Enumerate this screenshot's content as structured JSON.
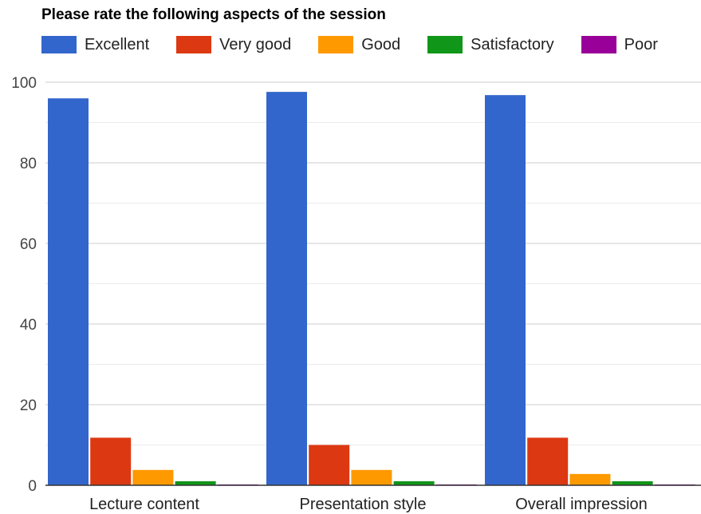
{
  "chart_data": {
    "type": "bar",
    "title": "Please rate the following aspects of the session",
    "categories": [
      "Lecture content",
      "Presentation style",
      "Overall impression"
    ],
    "series": [
      {
        "name": "Excellent",
        "color": "#3366cc",
        "values": [
          96,
          97.6,
          96.8
        ]
      },
      {
        "name": "Very good",
        "color": "#dc3912",
        "values": [
          11.8,
          10,
          11.8
        ]
      },
      {
        "name": "Good",
        "color": "#ff9900",
        "values": [
          3.8,
          3.8,
          2.8
        ]
      },
      {
        "name": "Satisfactory",
        "color": "#109618",
        "values": [
          1,
          1,
          1
        ]
      },
      {
        "name": "Poor",
        "color": "#990099",
        "values": [
          0.2,
          0.2,
          0.2
        ]
      }
    ],
    "ylim": [
      0,
      100
    ],
    "yticks": [
      0,
      20,
      40,
      60,
      80,
      100
    ],
    "grid": true,
    "legend_position": "top",
    "xlabel": "",
    "ylabel": ""
  }
}
